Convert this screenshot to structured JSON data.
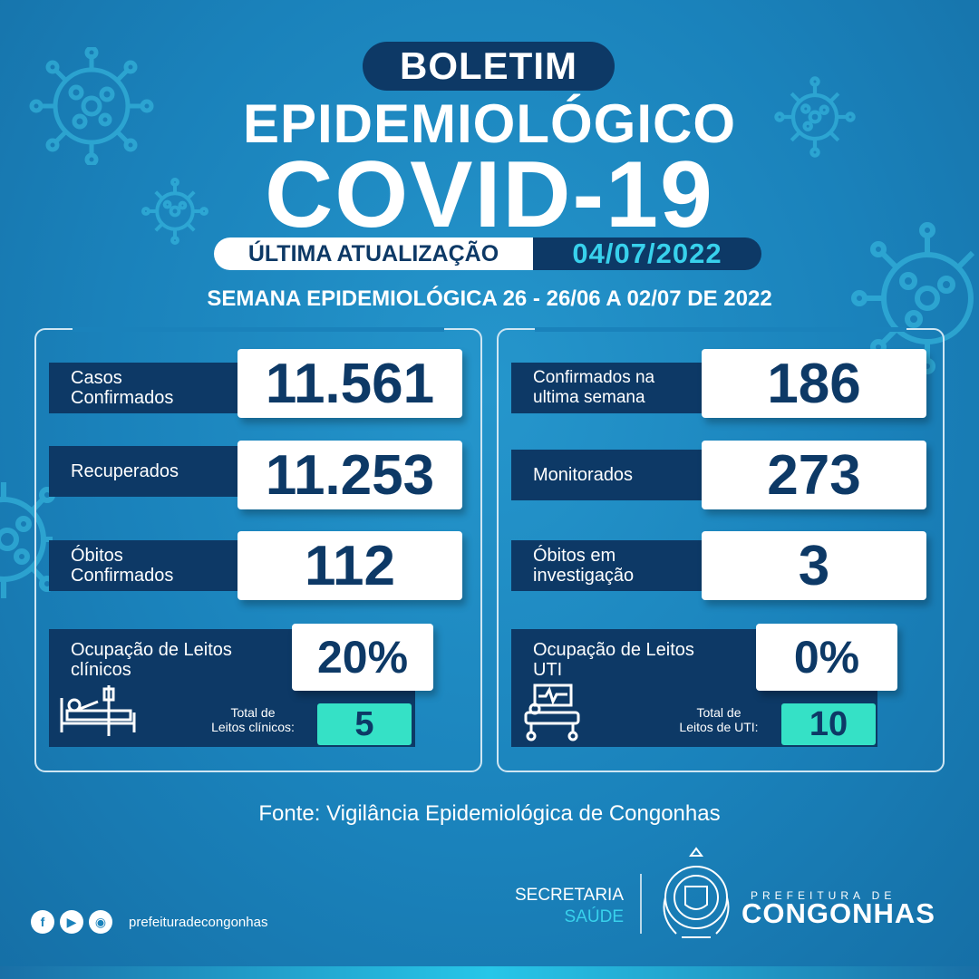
{
  "header": {
    "badge": "BOLETIM",
    "title": "EPIDEMIOLÓGICO",
    "subject": "COVID-19",
    "update_label": "ÚLTIMA ATUALIZAÇÃO",
    "update_date": "04/07/2022",
    "week": "SEMANA EPIDEMIOLÓGICA 26 - 26/06 A 02/07 DE 2022"
  },
  "left_panel": {
    "cases": {
      "label_line1": "Casos",
      "label_line2": "Confirmados",
      "value": "11.561"
    },
    "recovered": {
      "label": "Recuperados",
      "value": "11.253"
    },
    "deaths": {
      "label_line1": "Óbitos",
      "label_line2": "Confirmados",
      "value": "112"
    },
    "occupancy": {
      "label_line1": "Ocupação de Leitos",
      "label_line2": "clínicos",
      "value": "20%",
      "total_label_line1": "Total de",
      "total_label_line2": "Leitos clínicos:",
      "total_value": "5",
      "icon": "hospital-bed-icon"
    }
  },
  "right_panel": {
    "week_confirmed": {
      "label_line1": "Confirmados na",
      "label_line2": "ultima semana",
      "value": "186"
    },
    "monitored": {
      "label": "Monitorados",
      "value": "273"
    },
    "deaths_investigation": {
      "label_line1": "Óbitos em",
      "label_line2": "investigação",
      "value": "3"
    },
    "occupancy": {
      "label_line1": "Ocupação de Leitos",
      "label_line2": "UTI",
      "value": "0%",
      "total_label_line1": "Total de",
      "total_label_line2": "Leitos de UTI:",
      "total_value": "10",
      "icon": "icu-bed-icon"
    }
  },
  "source": "Fonte: Vigilância Epidemiológica de Congonhas",
  "footer": {
    "social_icons": [
      "facebook-icon",
      "youtube-icon",
      "instagram-icon"
    ],
    "handle": "prefeituradecongonhas",
    "secretaria_line1": "SECRETARIA",
    "secretaria_line2": "SAÚDE",
    "prefeitura_small": "PREFEITURA DE",
    "prefeitura_big": "CONGONHAS"
  },
  "colors": {
    "background": "#1a82bb",
    "navy": "#0d3966",
    "accent_cyan": "#38d1ec",
    "accent_teal": "#35e1c6"
  }
}
